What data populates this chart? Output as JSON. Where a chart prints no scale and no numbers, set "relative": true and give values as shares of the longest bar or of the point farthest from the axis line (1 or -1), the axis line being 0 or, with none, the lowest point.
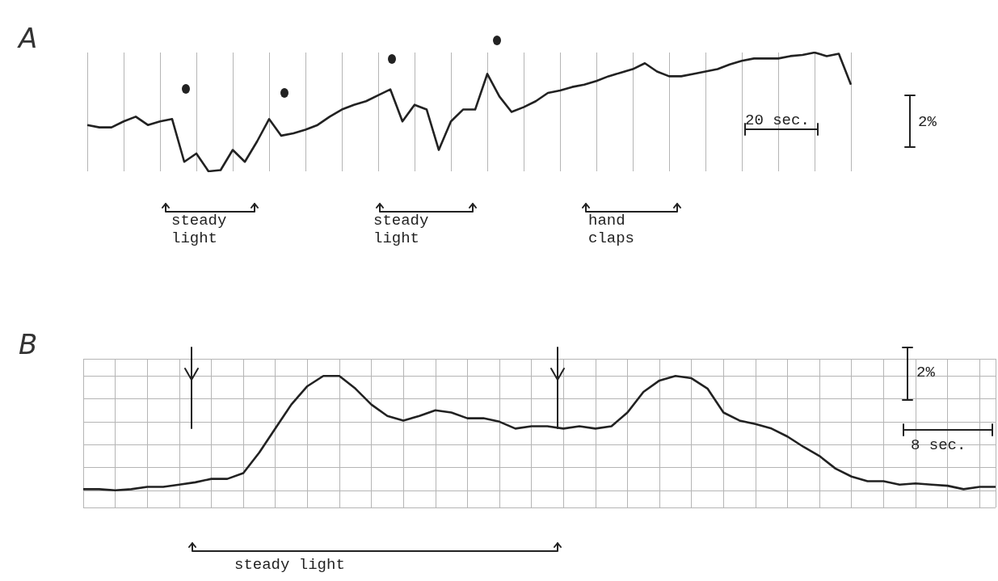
{
  "chart_data": [
    {
      "type": "line",
      "title": "A",
      "relative": true,
      "grid": "x",
      "marker": "none",
      "line_style": "solid",
      "categories": [
        null,
        null,
        null,
        null,
        null,
        null,
        null,
        null,
        null,
        null,
        null,
        null,
        null,
        null,
        null,
        null,
        null,
        null,
        null,
        null,
        null,
        null,
        null,
        null,
        null,
        null,
        null,
        null,
        null,
        null,
        null,
        null,
        null,
        null,
        null,
        null,
        null,
        null,
        null,
        null,
        null,
        null,
        null,
        null,
        null,
        null,
        null,
        null,
        null,
        null,
        null,
        null,
        null,
        null,
        null,
        null,
        null,
        null,
        null,
        null,
        null,
        null,
        null,
        null
      ],
      "series": [
        {
          "color": "#222222",
          "values": [
            0.39,
            0.37,
            0.37,
            0.42,
            0.46,
            0.39,
            0.42,
            0.44,
            0.08,
            0.15,
            0,
            0.01,
            0.18,
            0.08,
            0.25,
            0.44,
            0.3,
            0.32,
            0.35,
            0.39,
            0.46,
            0.52,
            0.56,
            0.59,
            0.64,
            0.69,
            0.42,
            0.56,
            0.52,
            0.18,
            0.42,
            0.52,
            0.52,
            0.82,
            0.63,
            0.5,
            0.54,
            0.59,
            0.66,
            0.68,
            0.71,
            0.73,
            0.76,
            0.8,
            0.83,
            0.86,
            0.91,
            0.84,
            0.8,
            0.8,
            0.82,
            0.84,
            0.86,
            0.9,
            0.93,
            0.95,
            0.95,
            0.95,
            0.97,
            0.98,
            1,
            0.97,
            0.99,
            0.73
          ]
        }
      ],
      "annotations": [
        "steady light",
        "steady light",
        "hand claps",
        "20 sec.",
        "2%"
      ]
    },
    {
      "type": "line",
      "title": "B",
      "relative": true,
      "grid": true,
      "marker": "none",
      "line_style": "solid",
      "categories": [
        null,
        null,
        null,
        null,
        null,
        null,
        null,
        null,
        null,
        null,
        null,
        null,
        null,
        null,
        null,
        null,
        null,
        null,
        null,
        null,
        null,
        null,
        null,
        null,
        null,
        null,
        null,
        null,
        null,
        null,
        null,
        null,
        null,
        null,
        null,
        null,
        null,
        null,
        null,
        null,
        null,
        null,
        null,
        null,
        null,
        null,
        null,
        null,
        null,
        null,
        null,
        null,
        null,
        null,
        null,
        null,
        null,
        null
      ],
      "series": [
        {
          "color": "#222222",
          "values": [
            0.01,
            0.01,
            0,
            0.01,
            0.03,
            0.03,
            0.05,
            0.07,
            0.1,
            0.1,
            0.15,
            0.33,
            0.54,
            0.75,
            0.91,
            1,
            1,
            0.89,
            0.75,
            0.65,
            0.61,
            0.65,
            0.7,
            0.68,
            0.63,
            0.63,
            0.6,
            0.54,
            0.56,
            0.56,
            0.54,
            0.56,
            0.54,
            0.56,
            0.68,
            0.86,
            0.96,
            1,
            0.98,
            0.89,
            0.68,
            0.61,
            0.58,
            0.54,
            0.47,
            0.38,
            0.3,
            0.19,
            0.12,
            0.08,
            0.08,
            0.05,
            0.06,
            0.05,
            0.04,
            0.01,
            0.03,
            0.03
          ]
        }
      ],
      "annotations": [
        "steady light",
        "2%",
        "8 sec."
      ]
    }
  ]
}
